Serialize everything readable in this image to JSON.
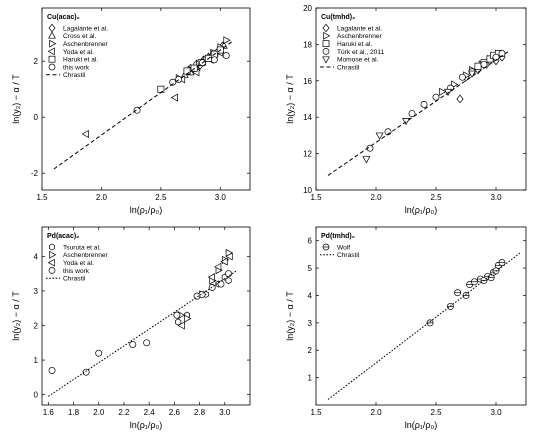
{
  "chart_data": [
    {
      "type": "scatter",
      "title": "",
      "legend_title": "Cu(acac)₂",
      "legend_position": "top-left",
      "xlabel": "ln(ρ₁/ρ₀)",
      "ylabel": "ln(y₂) − α / T",
      "xlim": [
        1.5,
        3.25
      ],
      "ylim": [
        -2.6,
        3.9
      ],
      "xticks": [
        "1.5",
        "2.0",
        "2.5",
        "3.0"
      ],
      "xtick_values": [
        1.5,
        2.0,
        2.5,
        3.0
      ],
      "yticks": [
        "-2",
        "0",
        "2"
      ],
      "ytick_values": [
        -2,
        0,
        2
      ],
      "series": [
        {
          "name": "Lagalante et al.",
          "marker": "diamond",
          "x": [
            2.75,
            2.8,
            2.83,
            2.86,
            2.9,
            2.93,
            2.97,
            3.0,
            3.02
          ],
          "y": [
            1.75,
            1.9,
            1.85,
            2.05,
            2.15,
            2.2,
            2.3,
            2.45,
            2.55
          ]
        },
        {
          "name": "Cross et al.",
          "marker": "triangle-up",
          "x": [
            2.7,
            2.75,
            2.8,
            2.85,
            2.9,
            2.95,
            3.0,
            3.03
          ],
          "y": [
            1.5,
            1.6,
            1.75,
            1.95,
            2.1,
            2.25,
            2.4,
            2.55
          ]
        },
        {
          "name": "Aschenbrenner",
          "marker": "triangle-right",
          "x": [
            2.65,
            2.75,
            2.82,
            2.88,
            2.94,
            3.0,
            3.05
          ],
          "y": [
            1.4,
            1.7,
            1.9,
            2.05,
            2.3,
            2.5,
            2.75
          ]
        },
        {
          "name": "Yoda et al.",
          "marker": "triangle-left",
          "x": [
            1.87,
            2.62,
            2.68,
            2.8,
            2.92,
            3.0
          ],
          "y": [
            -0.6,
            0.7,
            1.35,
            1.6,
            2.05,
            2.3
          ]
        },
        {
          "name": "Haruki et al.",
          "marker": "square",
          "x": [
            2.5,
            2.72,
            2.78,
            2.84,
            2.9,
            2.95,
            3.0
          ],
          "y": [
            1.0,
            1.65,
            1.75,
            1.95,
            2.1,
            2.25,
            2.4
          ]
        },
        {
          "name": "this work",
          "marker": "circle",
          "x": [
            2.3,
            2.6,
            2.65,
            2.85,
            2.95,
            3.05
          ],
          "y": [
            0.25,
            1.25,
            1.35,
            1.95,
            2.05,
            2.2
          ]
        },
        {
          "name": "Chrastil",
          "type": "line",
          "style": "dashed",
          "x": [
            1.6,
            3.1
          ],
          "y": [
            -1.85,
            2.7
          ]
        }
      ]
    },
    {
      "type": "scatter",
      "title": "",
      "legend_title": "Cu(tmhd)₂",
      "legend_position": "top-left",
      "xlabel": "ln(ρ₁/ρ₀)",
      "ylabel": "ln(y₂) − α / T",
      "xlim": [
        1.5,
        3.25
      ],
      "ylim": [
        10,
        20
      ],
      "xticks": [
        "1.5",
        "2.0",
        "2.5",
        "3.0"
      ],
      "xtick_values": [
        1.5,
        2.0,
        2.5,
        3.0
      ],
      "yticks": [
        "10",
        "12",
        "14",
        "16",
        "18",
        "20"
      ],
      "ytick_values": [
        10,
        12,
        14,
        16,
        18,
        20
      ],
      "series": [
        {
          "name": "Lagalante et al.",
          "marker": "diamond",
          "x": [
            2.7,
            2.75,
            2.85,
            2.92,
            3.0,
            3.05
          ],
          "y": [
            15.0,
            16.2,
            16.6,
            16.9,
            17.1,
            17.3
          ]
        },
        {
          "name": "Aschenbrenner",
          "marker": "triangle-right",
          "x": [
            2.55,
            2.65,
            2.75,
            2.8,
            2.88,
            2.95,
            3.02
          ],
          "y": [
            15.4,
            15.8,
            16.3,
            16.6,
            16.9,
            17.2,
            17.5
          ]
        },
        {
          "name": "Haruki et al.",
          "marker": "square",
          "x": [
            2.85,
            2.9,
            2.95,
            2.98,
            3.02
          ],
          "y": [
            16.8,
            17.0,
            17.2,
            17.4,
            17.5
          ]
        },
        {
          "name": "Türk et al., 2011",
          "marker": "circle",
          "x": [
            1.95,
            2.1,
            2.3,
            2.4,
            2.5,
            2.62,
            2.72,
            2.8,
            2.9,
            3.0,
            3.05
          ],
          "y": [
            12.3,
            13.2,
            14.2,
            14.7,
            15.1,
            15.6,
            16.2,
            16.5,
            16.9,
            17.3,
            17.5
          ]
        },
        {
          "name": "Momose et al.",
          "marker": "triangle-down",
          "x": [
            1.92,
            2.03,
            2.25,
            2.6,
            2.8
          ],
          "y": [
            11.7,
            13.0,
            13.8,
            15.4,
            16.4
          ]
        },
        {
          "name": "Chrastil",
          "type": "line",
          "style": "dashed",
          "x": [
            1.6,
            3.1
          ],
          "y": [
            10.8,
            17.6
          ]
        }
      ]
    },
    {
      "type": "scatter",
      "title": "",
      "legend_title": "Pd(acac)₂",
      "legend_position": "top-left",
      "xlabel": "ln(ρ₁/ρ₀)",
      "ylabel": "ln(y₂) − α / T",
      "xlim": [
        1.55,
        3.2
      ],
      "ylim": [
        -0.3,
        4.85
      ],
      "xticks": [
        "1.6",
        "1.8",
        "2.0",
        "2.2",
        "2.4",
        "2.6",
        "2.8",
        "3.0"
      ],
      "xtick_values": [
        1.6,
        1.8,
        2.0,
        2.2,
        2.4,
        2.6,
        2.8,
        3.0
      ],
      "yticks": [
        "0",
        "1",
        "2",
        "3",
        "4"
      ],
      "ytick_values": [
        0,
        1,
        2,
        3,
        4
      ],
      "series": [
        {
          "name": "Tsuruta et al.",
          "marker": "hexagon",
          "x": [
            2.63,
            2.7,
            2.85,
            2.9,
            2.95,
            3.0,
            3.03
          ],
          "y": [
            2.1,
            2.3,
            2.9,
            3.1,
            3.2,
            3.4,
            3.3
          ]
        },
        {
          "name": "Aschenbrenner",
          "marker": "triangle-right",
          "x": [
            2.65,
            2.7,
            2.82,
            2.9,
            2.95,
            3.0,
            3.03
          ],
          "y": [
            2.3,
            2.2,
            2.9,
            3.3,
            3.6,
            3.9,
            4.1
          ]
        },
        {
          "name": "Yoda et al.",
          "marker": "triangle-left",
          "x": [
            2.66,
            2.9,
            2.95,
            3.0,
            3.04
          ],
          "y": [
            2.0,
            3.4,
            3.7,
            3.85,
            4.0
          ]
        },
        {
          "name": "this work",
          "marker": "circle",
          "x": [
            1.63,
            1.9,
            2.0,
            2.27,
            2.38,
            2.62,
            2.78,
            2.82,
            2.9,
            2.97,
            3.03
          ],
          "y": [
            0.7,
            0.65,
            1.2,
            1.45,
            1.5,
            2.3,
            2.85,
            2.9,
            3.1,
            3.2,
            3.5
          ]
        },
        {
          "name": "Chrastil",
          "type": "line",
          "style": "dotted",
          "x": [
            1.6,
            3.1
          ],
          "y": [
            -0.05,
            3.6
          ]
        }
      ]
    },
    {
      "type": "scatter",
      "title": "",
      "legend_title": "Pd(tmhd)₂",
      "legend_position": "top-left",
      "xlabel": "ln(ρ₁/ρ₀)",
      "ylabel": "ln(y₂) − α / T",
      "xlim": [
        1.5,
        3.25
      ],
      "ylim": [
        0,
        6.5
      ],
      "xticks": [
        "1.5",
        "2.0",
        "2.5",
        "3.0"
      ],
      "xtick_values": [
        1.5,
        2.0,
        2.5,
        3.0
      ],
      "yticks": [
        "1",
        "2",
        "3",
        "4",
        "5",
        "6"
      ],
      "ytick_values": [
        1,
        2,
        3,
        4,
        5,
        6
      ],
      "series": [
        {
          "name": "Wolf",
          "marker": "circle-bar",
          "x": [
            2.45,
            2.62,
            2.68,
            2.75,
            2.78,
            2.82,
            2.87,
            2.9,
            2.93,
            2.96,
            2.98,
            3.0,
            3.02,
            3.05
          ],
          "y": [
            3.0,
            3.6,
            4.1,
            4.0,
            4.4,
            4.5,
            4.6,
            4.55,
            4.7,
            4.65,
            4.85,
            4.9,
            5.1,
            5.2
          ]
        },
        {
          "name": "Chrastil",
          "type": "line",
          "style": "dotted",
          "x": [
            1.6,
            3.2
          ],
          "y": [
            0.2,
            5.55
          ]
        }
      ]
    }
  ]
}
